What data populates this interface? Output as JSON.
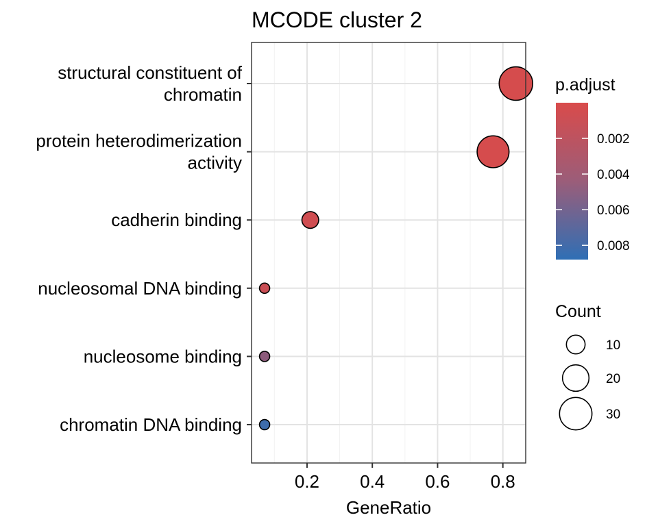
{
  "chart_data": {
    "type": "scatter",
    "title": "MCODE cluster 2",
    "xlabel": "GeneRatio",
    "ylabel": "",
    "xlim": [
      0.03,
      0.87
    ],
    "x_ticks": [
      0.2,
      0.4,
      0.6,
      0.8
    ],
    "x_tick_labels": [
      "0.2",
      "0.4",
      "0.6",
      "0.8"
    ],
    "grid": true,
    "categories": [
      [
        "structural constituent of",
        "chromatin"
      ],
      [
        "protein heterodimerization",
        "activity"
      ],
      [
        "cadherin binding"
      ],
      [
        "nucleosomal DNA binding"
      ],
      [
        "nucleosome binding"
      ],
      [
        "chromatin DNA binding"
      ]
    ],
    "points": [
      {
        "x": 0.84,
        "count": 32,
        "p_adjust": 0.0002
      },
      {
        "x": 0.77,
        "count": 29,
        "p_adjust": 0.0002
      },
      {
        "x": 0.21,
        "count": 8,
        "p_adjust": 0.0005
      },
      {
        "x": 0.07,
        "count": 3,
        "p_adjust": 0.0008
      },
      {
        "x": 0.07,
        "count": 3,
        "p_adjust": 0.004
      },
      {
        "x": 0.07,
        "count": 3,
        "p_adjust": 0.008
      }
    ],
    "color_legend": {
      "title": "p.adjust",
      "range": [
        0.0,
        0.0088
      ],
      "ticks": [
        0.002,
        0.004,
        0.006,
        0.008
      ],
      "tick_labels": [
        "0.002",
        "0.004",
        "0.006",
        "0.008"
      ],
      "low_color": "#d94b4b",
      "high_color": "#2f6fb5"
    },
    "size_legend": {
      "title": "Count",
      "values": [
        10,
        20,
        30
      ],
      "labels": [
        "10",
        "20",
        "30"
      ]
    },
    "legend_position": "right"
  }
}
